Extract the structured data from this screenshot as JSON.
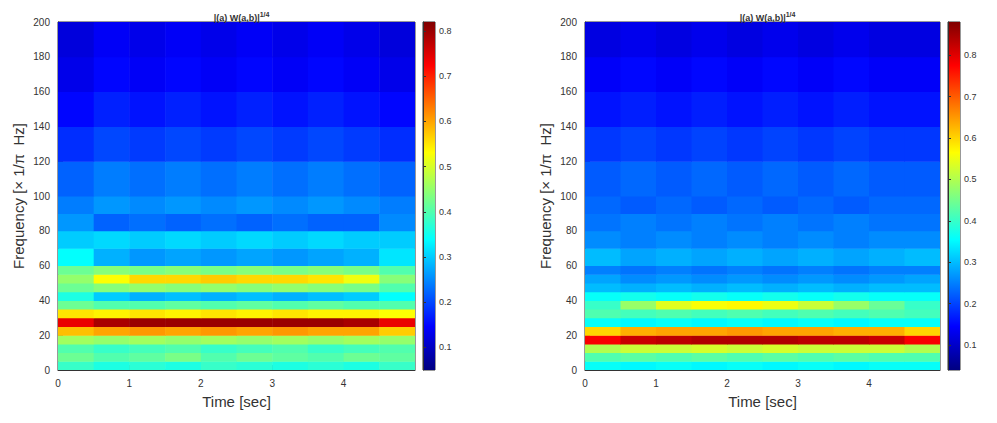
{
  "chart_data": [
    {
      "type": "heatmap",
      "title": "|(a) W(a,b)|",
      "title_superscript": "1/4",
      "x_label": "Time [sec]",
      "y_label": "Frequency [× 1/π  Hz]",
      "xlim": [
        0,
        5
      ],
      "xticks": [
        0,
        1,
        2,
        3,
        4
      ],
      "ylim": [
        0,
        200
      ],
      "yticks": [
        0,
        20,
        40,
        60,
        80,
        100,
        120,
        140,
        160,
        180,
        200
      ],
      "grid": false,
      "x_edges": [
        0,
        0.5,
        1,
        1.5,
        2,
        2.5,
        3,
        3.5,
        4,
        4.5,
        5
      ],
      "y_edges": [
        0,
        5,
        10,
        15,
        20,
        25,
        30,
        35,
        40,
        45,
        50,
        55,
        60,
        70,
        80,
        90,
        100,
        120,
        140,
        160,
        180,
        200
      ],
      "cells": [
        [
          0.38,
          0.36,
          0.37,
          0.36,
          0.38,
          0.37,
          0.36,
          0.37,
          0.36,
          0.38
        ],
        [
          0.42,
          0.4,
          0.41,
          0.43,
          0.4,
          0.42,
          0.41,
          0.4,
          0.42,
          0.41
        ],
        [
          0.4,
          0.38,
          0.39,
          0.4,
          0.38,
          0.39,
          0.4,
          0.38,
          0.39,
          0.4
        ],
        [
          0.46,
          0.45,
          0.46,
          0.45,
          0.46,
          0.45,
          0.46,
          0.45,
          0.46,
          0.45
        ],
        [
          0.58,
          0.6,
          0.61,
          0.6,
          0.61,
          0.6,
          0.61,
          0.6,
          0.6,
          0.57
        ],
        [
          0.74,
          0.79,
          0.8,
          0.8,
          0.8,
          0.8,
          0.8,
          0.8,
          0.79,
          0.74
        ],
        [
          0.55,
          0.54,
          0.55,
          0.54,
          0.55,
          0.54,
          0.55,
          0.54,
          0.54,
          0.53
        ],
        [
          0.42,
          0.4,
          0.4,
          0.41,
          0.4,
          0.41,
          0.4,
          0.41,
          0.4,
          0.4
        ],
        [
          0.36,
          0.3,
          0.28,
          0.29,
          0.28,
          0.29,
          0.28,
          0.29,
          0.3,
          0.34
        ],
        [
          0.42,
          0.44,
          0.45,
          0.44,
          0.45,
          0.44,
          0.45,
          0.44,
          0.43,
          0.4
        ],
        [
          0.45,
          0.53,
          0.56,
          0.56,
          0.57,
          0.56,
          0.56,
          0.55,
          0.52,
          0.44
        ],
        [
          0.42,
          0.44,
          0.43,
          0.44,
          0.43,
          0.44,
          0.43,
          0.44,
          0.43,
          0.4
        ],
        [
          0.34,
          0.28,
          0.26,
          0.27,
          0.26,
          0.27,
          0.26,
          0.27,
          0.28,
          0.32
        ],
        [
          0.3,
          0.31,
          0.3,
          0.31,
          0.3,
          0.31,
          0.3,
          0.31,
          0.3,
          0.3
        ],
        [
          0.26,
          0.22,
          0.23,
          0.22,
          0.23,
          0.22,
          0.23,
          0.22,
          0.22,
          0.25
        ],
        [
          0.24,
          0.26,
          0.25,
          0.26,
          0.25,
          0.26,
          0.25,
          0.26,
          0.25,
          0.24
        ],
        [
          0.22,
          0.24,
          0.23,
          0.24,
          0.23,
          0.24,
          0.23,
          0.24,
          0.23,
          0.22
        ],
        [
          0.18,
          0.2,
          0.19,
          0.2,
          0.19,
          0.2,
          0.19,
          0.2,
          0.19,
          0.18
        ],
        [
          0.15,
          0.17,
          0.16,
          0.17,
          0.16,
          0.17,
          0.16,
          0.17,
          0.16,
          0.15
        ],
        [
          0.13,
          0.15,
          0.14,
          0.15,
          0.14,
          0.15,
          0.14,
          0.15,
          0.14,
          0.13
        ],
        [
          0.12,
          0.14,
          0.13,
          0.14,
          0.13,
          0.14,
          0.13,
          0.14,
          0.13,
          0.12
        ]
      ],
      "colorbar_range": [
        0.05,
        0.82
      ],
      "colorbar_ticks": [
        0.1,
        0.2,
        0.3,
        0.4,
        0.5,
        0.6,
        0.7,
        0.8
      ]
    },
    {
      "type": "heatmap",
      "title": "|(a) W(a,b)|",
      "title_superscript": "1/4",
      "x_label": "Time [sec]",
      "y_label": "Frequency [× 1/π  Hz]",
      "xlim": [
        0,
        5
      ],
      "xticks": [
        0,
        1,
        2,
        3,
        4
      ],
      "ylim": [
        0,
        200
      ],
      "yticks": [
        0,
        20,
        40,
        60,
        80,
        100,
        120,
        140,
        160,
        180,
        200
      ],
      "grid": false,
      "x_edges": [
        0,
        0.5,
        1,
        1.5,
        2,
        2.5,
        3,
        3.5,
        4,
        4.5,
        5
      ],
      "y_edges": [
        0,
        5,
        10,
        15,
        20,
        25,
        30,
        35,
        40,
        45,
        50,
        55,
        60,
        70,
        80,
        90,
        100,
        120,
        140,
        160,
        180,
        200
      ],
      "cells": [
        [
          0.36,
          0.35,
          0.36,
          0.35,
          0.36,
          0.35,
          0.36,
          0.35,
          0.36,
          0.36
        ],
        [
          0.42,
          0.43,
          0.42,
          0.43,
          0.42,
          0.43,
          0.42,
          0.43,
          0.42,
          0.42
        ],
        [
          0.5,
          0.52,
          0.52,
          0.53,
          0.52,
          0.53,
          0.52,
          0.52,
          0.52,
          0.5
        ],
        [
          0.78,
          0.82,
          0.83,
          0.84,
          0.84,
          0.84,
          0.83,
          0.83,
          0.82,
          0.78
        ],
        [
          0.6,
          0.63,
          0.64,
          0.64,
          0.65,
          0.64,
          0.64,
          0.63,
          0.63,
          0.6
        ],
        [
          0.36,
          0.35,
          0.36,
          0.35,
          0.36,
          0.35,
          0.36,
          0.35,
          0.36,
          0.36
        ],
        [
          0.42,
          0.41,
          0.42,
          0.41,
          0.42,
          0.41,
          0.42,
          0.41,
          0.42,
          0.41
        ],
        [
          0.4,
          0.48,
          0.54,
          0.56,
          0.57,
          0.55,
          0.52,
          0.48,
          0.44,
          0.4
        ],
        [
          0.36,
          0.37,
          0.36,
          0.37,
          0.36,
          0.37,
          0.36,
          0.37,
          0.36,
          0.36
        ],
        [
          0.3,
          0.29,
          0.3,
          0.29,
          0.3,
          0.29,
          0.3,
          0.29,
          0.3,
          0.3
        ],
        [
          0.28,
          0.26,
          0.27,
          0.26,
          0.27,
          0.26,
          0.27,
          0.26,
          0.27,
          0.28
        ],
        [
          0.25,
          0.24,
          0.25,
          0.24,
          0.25,
          0.24,
          0.25,
          0.24,
          0.25,
          0.25
        ],
        [
          0.3,
          0.28,
          0.29,
          0.28,
          0.29,
          0.28,
          0.29,
          0.28,
          0.29,
          0.3
        ],
        [
          0.26,
          0.25,
          0.26,
          0.25,
          0.26,
          0.25,
          0.26,
          0.25,
          0.26,
          0.26
        ],
        [
          0.24,
          0.25,
          0.24,
          0.25,
          0.24,
          0.25,
          0.24,
          0.25,
          0.24,
          0.24
        ],
        [
          0.23,
          0.22,
          0.23,
          0.22,
          0.23,
          0.22,
          0.23,
          0.22,
          0.23,
          0.23
        ],
        [
          0.22,
          0.23,
          0.22,
          0.23,
          0.22,
          0.23,
          0.22,
          0.23,
          0.22,
          0.22
        ],
        [
          0.19,
          0.2,
          0.19,
          0.2,
          0.19,
          0.2,
          0.19,
          0.2,
          0.19,
          0.19
        ],
        [
          0.16,
          0.17,
          0.16,
          0.17,
          0.16,
          0.17,
          0.16,
          0.17,
          0.16,
          0.16
        ],
        [
          0.14,
          0.15,
          0.14,
          0.15,
          0.14,
          0.15,
          0.14,
          0.15,
          0.14,
          0.14
        ],
        [
          0.12,
          0.13,
          0.12,
          0.13,
          0.12,
          0.13,
          0.12,
          0.13,
          0.12,
          0.12
        ]
      ],
      "colorbar_range": [
        0.04,
        0.88
      ],
      "colorbar_ticks": [
        0.1,
        0.2,
        0.3,
        0.4,
        0.5,
        0.6,
        0.7,
        0.8
      ]
    }
  ]
}
